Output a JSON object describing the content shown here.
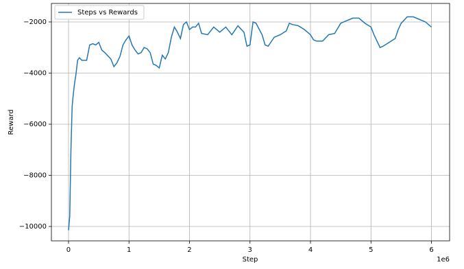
{
  "chart_data": {
    "type": "line",
    "x_label": "Step",
    "y_label": "Reward",
    "x_offset_label": "1e6",
    "x": [
      0,
      20000,
      40000,
      60000,
      80000,
      100000,
      120000,
      150000,
      180000,
      220000,
      300000,
      350000,
      400000,
      450000,
      500000,
      550000,
      600000,
      700000,
      750000,
      800000,
      850000,
      900000,
      950000,
      1000000,
      1050000,
      1100000,
      1150000,
      1200000,
      1250000,
      1300000,
      1350000,
      1400000,
      1450000,
      1500000,
      1550000,
      1600000,
      1650000,
      1700000,
      1750000,
      1800000,
      1850000,
      1900000,
      1950000,
      2000000,
      2050000,
      2100000,
      2150000,
      2200000,
      2300000,
      2400000,
      2500000,
      2600000,
      2700000,
      2800000,
      2900000,
      2950000,
      3000000,
      3050000,
      3100000,
      3200000,
      3250000,
      3300000,
      3400000,
      3500000,
      3600000,
      3650000,
      3700000,
      3800000,
      3900000,
      4000000,
      4050000,
      4100000,
      4200000,
      4300000,
      4400000,
      4500000,
      4600000,
      4700000,
      4800000,
      4900000,
      5000000,
      5050000,
      5100000,
      5150000,
      5200000,
      5300000,
      5400000,
      5450000,
      5500000,
      5600000,
      5700000,
      5800000,
      5900000,
      6000000
    ],
    "series": [
      {
        "name": "Steps vs Rewards",
        "color": "#1f77b4",
        "values": [
          -10150,
          -9600,
          -7000,
          -5300,
          -4800,
          -4400,
          -4100,
          -3500,
          -3400,
          -3500,
          -3500,
          -2900,
          -2850,
          -2900,
          -2800,
          -3100,
          -3200,
          -3450,
          -3750,
          -3600,
          -3350,
          -2900,
          -2700,
          -2550,
          -2900,
          -3100,
          -3250,
          -3200,
          -3000,
          -3050,
          -3200,
          -3650,
          -3700,
          -3800,
          -3300,
          -3450,
          -3200,
          -2600,
          -2200,
          -2400,
          -2650,
          -2100,
          -2000,
          -2300,
          -2200,
          -2200,
          -2050,
          -2450,
          -2500,
          -2200,
          -2400,
          -2200,
          -2500,
          -2150,
          -2400,
          -2950,
          -2900,
          -2000,
          -2050,
          -2500,
          -2900,
          -2950,
          -2600,
          -2500,
          -2350,
          -2050,
          -2100,
          -2150,
          -2300,
          -2500,
          -2700,
          -2750,
          -2750,
          -2500,
          -2450,
          -2050,
          -1950,
          -1850,
          -1850,
          -2050,
          -2200,
          -2500,
          -2750,
          -3000,
          -2950,
          -2800,
          -2650,
          -2300,
          -2050,
          -1800,
          -1800,
          -1900,
          -2000,
          -2200
        ]
      }
    ],
    "xlim": [
      -283000,
      6300000
    ],
    "ylim": [
      -10563,
      -1276
    ],
    "xticks": [
      0,
      {
        "value": 1000000,
        "label": "1"
      },
      {
        "value": 2000000,
        "label": "2"
      },
      {
        "value": 3000000,
        "label": "3"
      },
      {
        "value": 4000000,
        "label": "4"
      },
      {
        "value": 5000000,
        "label": "5"
      },
      {
        "value": 6000000,
        "label": "6"
      }
    ],
    "yticks": [
      {
        "value": -10000,
        "label": "−10000"
      },
      {
        "value": -8000,
        "label": "−8000"
      },
      {
        "value": -6000,
        "label": "−6000"
      },
      {
        "value": -4000,
        "label": "−4000"
      },
      {
        "value": -2000,
        "label": "−2000"
      }
    ],
    "grid": true,
    "legend": "upper left"
  }
}
